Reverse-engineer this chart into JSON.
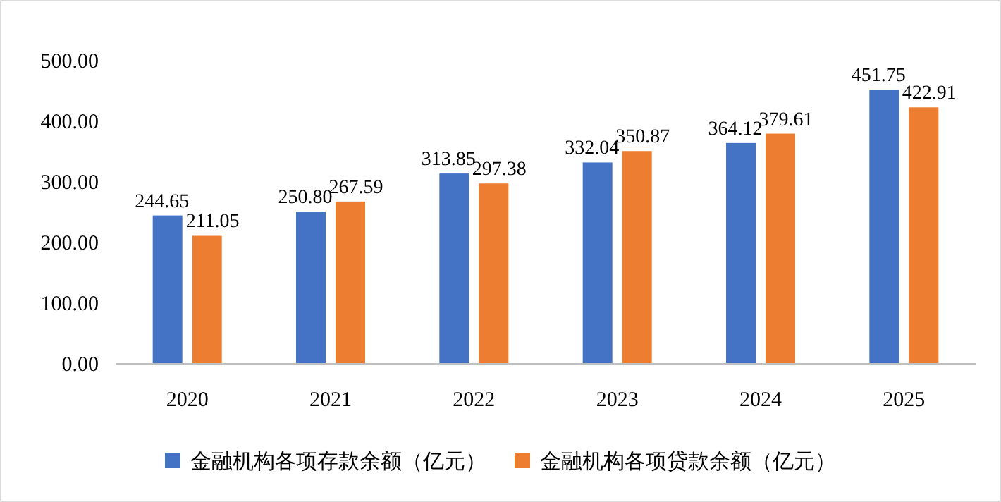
{
  "chart_data": {
    "type": "bar",
    "categories": [
      "2020",
      "2021",
      "2022",
      "2023",
      "2024",
      "2025"
    ],
    "series": [
      {
        "name": "金融机构各项存款余额（亿元）",
        "color": "#4472c4",
        "values": [
          244.65,
          250.8,
          313.85,
          332.04,
          364.12,
          451.75
        ],
        "value_labels": [
          "244.65",
          "250.80",
          "313.85",
          "332.04",
          "364.12",
          "451.75"
        ]
      },
      {
        "name": "金融机构各项贷款余额（亿元）",
        "color": "#ed7d31",
        "values": [
          211.05,
          267.59,
          297.38,
          350.87,
          379.61,
          422.91
        ],
        "value_labels": [
          "211.05",
          "267.59",
          "297.38",
          "350.87",
          "379.61",
          "422.91"
        ]
      }
    ],
    "ylim": [
      0,
      500
    ],
    "yticks": [
      {
        "value": 0,
        "label": "0.00"
      },
      {
        "value": 100,
        "label": "100.00"
      },
      {
        "value": 200,
        "label": "200.00"
      },
      {
        "value": 300,
        "label": "300.00"
      },
      {
        "value": 400,
        "label": "400.00"
      },
      {
        "value": 500,
        "label": "500.00"
      }
    ],
    "legend": "bottom"
  }
}
